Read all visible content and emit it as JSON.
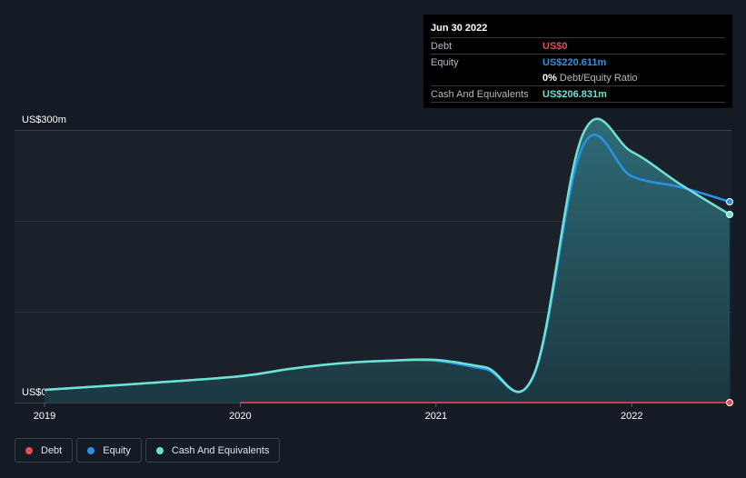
{
  "tooltip": {
    "date": "Jun 30 2022",
    "rows": [
      {
        "label": "Debt",
        "value": "US$0",
        "color": "#e64c51"
      },
      {
        "label": "Equity",
        "value": "US$220.611m",
        "color": "#2894e8"
      },
      {
        "ratio_value": "0%",
        "ratio_text": "Debt/Equity Ratio"
      },
      {
        "label": "Cash And Equivalents",
        "value": "US$206.831m",
        "color": "#6fe3d3"
      }
    ]
  },
  "legend": [
    {
      "label": "Debt",
      "color": "#e64c51"
    },
    {
      "label": "Equity",
      "color": "#2894e8"
    },
    {
      "label": "Cash And Equivalents",
      "color": "#6fe3d3"
    }
  ],
  "chart_data": {
    "type": "area",
    "y_label_top": "US$300m",
    "y_label_bottom": "US$0",
    "ylim": [
      0,
      300
    ],
    "xlim": [
      2019.0,
      2022.5
    ],
    "x_ticks": [
      {
        "value": 2019,
        "label": "2019"
      },
      {
        "value": 2020,
        "label": "2020"
      },
      {
        "value": 2021,
        "label": "2021"
      },
      {
        "value": 2022,
        "label": "2022"
      }
    ],
    "grid": true,
    "series": [
      {
        "name": "Cash And Equivalents",
        "color": "#6fe3d3",
        "points": [
          [
            2019.0,
            14
          ],
          [
            2019.5,
            21
          ],
          [
            2020.0,
            29
          ],
          [
            2020.25,
            37
          ],
          [
            2020.5,
            43
          ],
          [
            2020.75,
            46
          ],
          [
            2021.0,
            47
          ],
          [
            2021.25,
            39
          ],
          [
            2021.5,
            31
          ],
          [
            2021.75,
            295
          ],
          [
            2022.0,
            276
          ],
          [
            2022.25,
            240
          ],
          [
            2022.5,
            207
          ]
        ]
      },
      {
        "name": "Equity",
        "color": "#2894e8",
        "points": [
          [
            2019.0,
            14
          ],
          [
            2019.5,
            21
          ],
          [
            2020.0,
            29
          ],
          [
            2020.25,
            37
          ],
          [
            2020.5,
            43
          ],
          [
            2020.75,
            46
          ],
          [
            2021.0,
            46
          ],
          [
            2021.25,
            37
          ],
          [
            2021.5,
            30
          ],
          [
            2021.75,
            282
          ],
          [
            2022.0,
            249
          ],
          [
            2022.25,
            237
          ],
          [
            2022.5,
            221
          ]
        ]
      },
      {
        "name": "Debt",
        "color": "#e64c51",
        "points": [
          [
            2020.0,
            0
          ],
          [
            2020.5,
            0
          ],
          [
            2021.0,
            0
          ],
          [
            2021.5,
            0
          ],
          [
            2022.0,
            0
          ],
          [
            2022.5,
            0
          ]
        ]
      }
    ]
  }
}
